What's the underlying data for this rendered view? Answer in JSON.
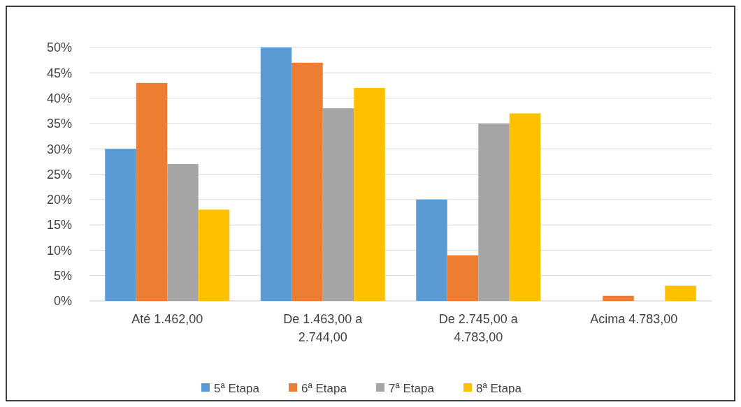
{
  "chart_data": {
    "type": "bar",
    "categories": [
      "Até 1.462,00",
      "De 1.463,00 a 2.744,00",
      "De 2.745,00 a 4.783,00",
      "Acima  4.783,00"
    ],
    "series": [
      {
        "name": "5ª Etapa",
        "color": "#5b9bd5",
        "values": [
          30,
          50,
          20,
          0
        ]
      },
      {
        "name": "6ª Etapa",
        "color": "#ed7d31",
        "values": [
          43,
          47,
          9,
          1
        ]
      },
      {
        "name": "7ª Etapa",
        "color": "#a5a5a5",
        "values": [
          27,
          38,
          35,
          0
        ]
      },
      {
        "name": "8ª Etapa",
        "color": "#ffc000",
        "values": [
          18,
          42,
          37,
          3
        ]
      }
    ],
    "ylim": [
      0,
      50
    ],
    "yticks": [
      {
        "value": 0,
        "label": "0%"
      },
      {
        "value": 5,
        "label": "5%"
      },
      {
        "value": 10,
        "label": "10%"
      },
      {
        "value": 15,
        "label": "15%"
      },
      {
        "value": 20,
        "label": "20%"
      },
      {
        "value": 25,
        "label": "25%"
      },
      {
        "value": 30,
        "label": "30%"
      },
      {
        "value": 35,
        "label": "35%"
      },
      {
        "value": 40,
        "label": "40%"
      },
      {
        "value": 45,
        "label": "45%"
      },
      {
        "value": 50,
        "label": "50%"
      }
    ],
    "grid": "y",
    "legend": "bottom"
  }
}
